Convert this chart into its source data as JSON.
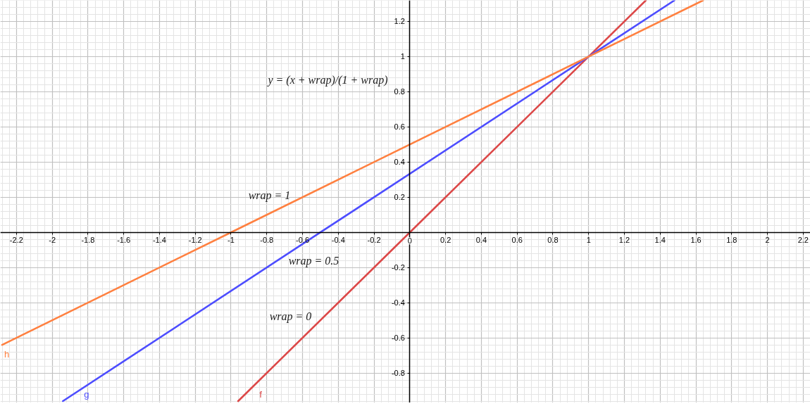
{
  "chart_data": {
    "type": "line",
    "annotations": [
      "y = (x + wrap)/(1 + wrap)",
      "wrap = 1",
      "wrap = 0.5",
      "wrap = 0"
    ],
    "series": [
      {
        "name": "f",
        "color": "#dc4848",
        "x": [
          -0.96,
          0,
          1,
          1.32
        ],
        "values": [
          -0.96,
          0,
          1,
          1.32
        ]
      },
      {
        "name": "g",
        "color": "#4d4dff",
        "x": [
          -1.94,
          -0.5,
          1,
          1.48
        ],
        "values": [
          -0.96,
          0,
          1,
          1.32
        ]
      },
      {
        "name": "h",
        "color": "#ff8040",
        "x": [
          -2.28,
          -1,
          1,
          1.64
        ],
        "values": [
          -0.64,
          0,
          1,
          1.32
        ]
      }
    ],
    "xlim": [
      -2.29,
      2.24
    ],
    "ylim": [
      -0.97,
      1.32
    ],
    "xticks": [
      -2.2,
      -2,
      -1.8,
      -1.6,
      -1.4,
      -1.2,
      -1,
      -0.8,
      -0.6,
      -0.4,
      -0.2,
      0,
      0.2,
      0.4,
      0.6,
      0.8,
      1,
      1.2,
      1.4,
      1.6,
      1.8,
      2,
      2.2
    ],
    "yticks": [
      -0.8,
      -0.6,
      -0.4,
      -0.2,
      {
        "value": 0,
        "label": null
      },
      0.2,
      0.4,
      0.6,
      0.8,
      1,
      1.2
    ],
    "grid": true,
    "line_style": "solid"
  }
}
